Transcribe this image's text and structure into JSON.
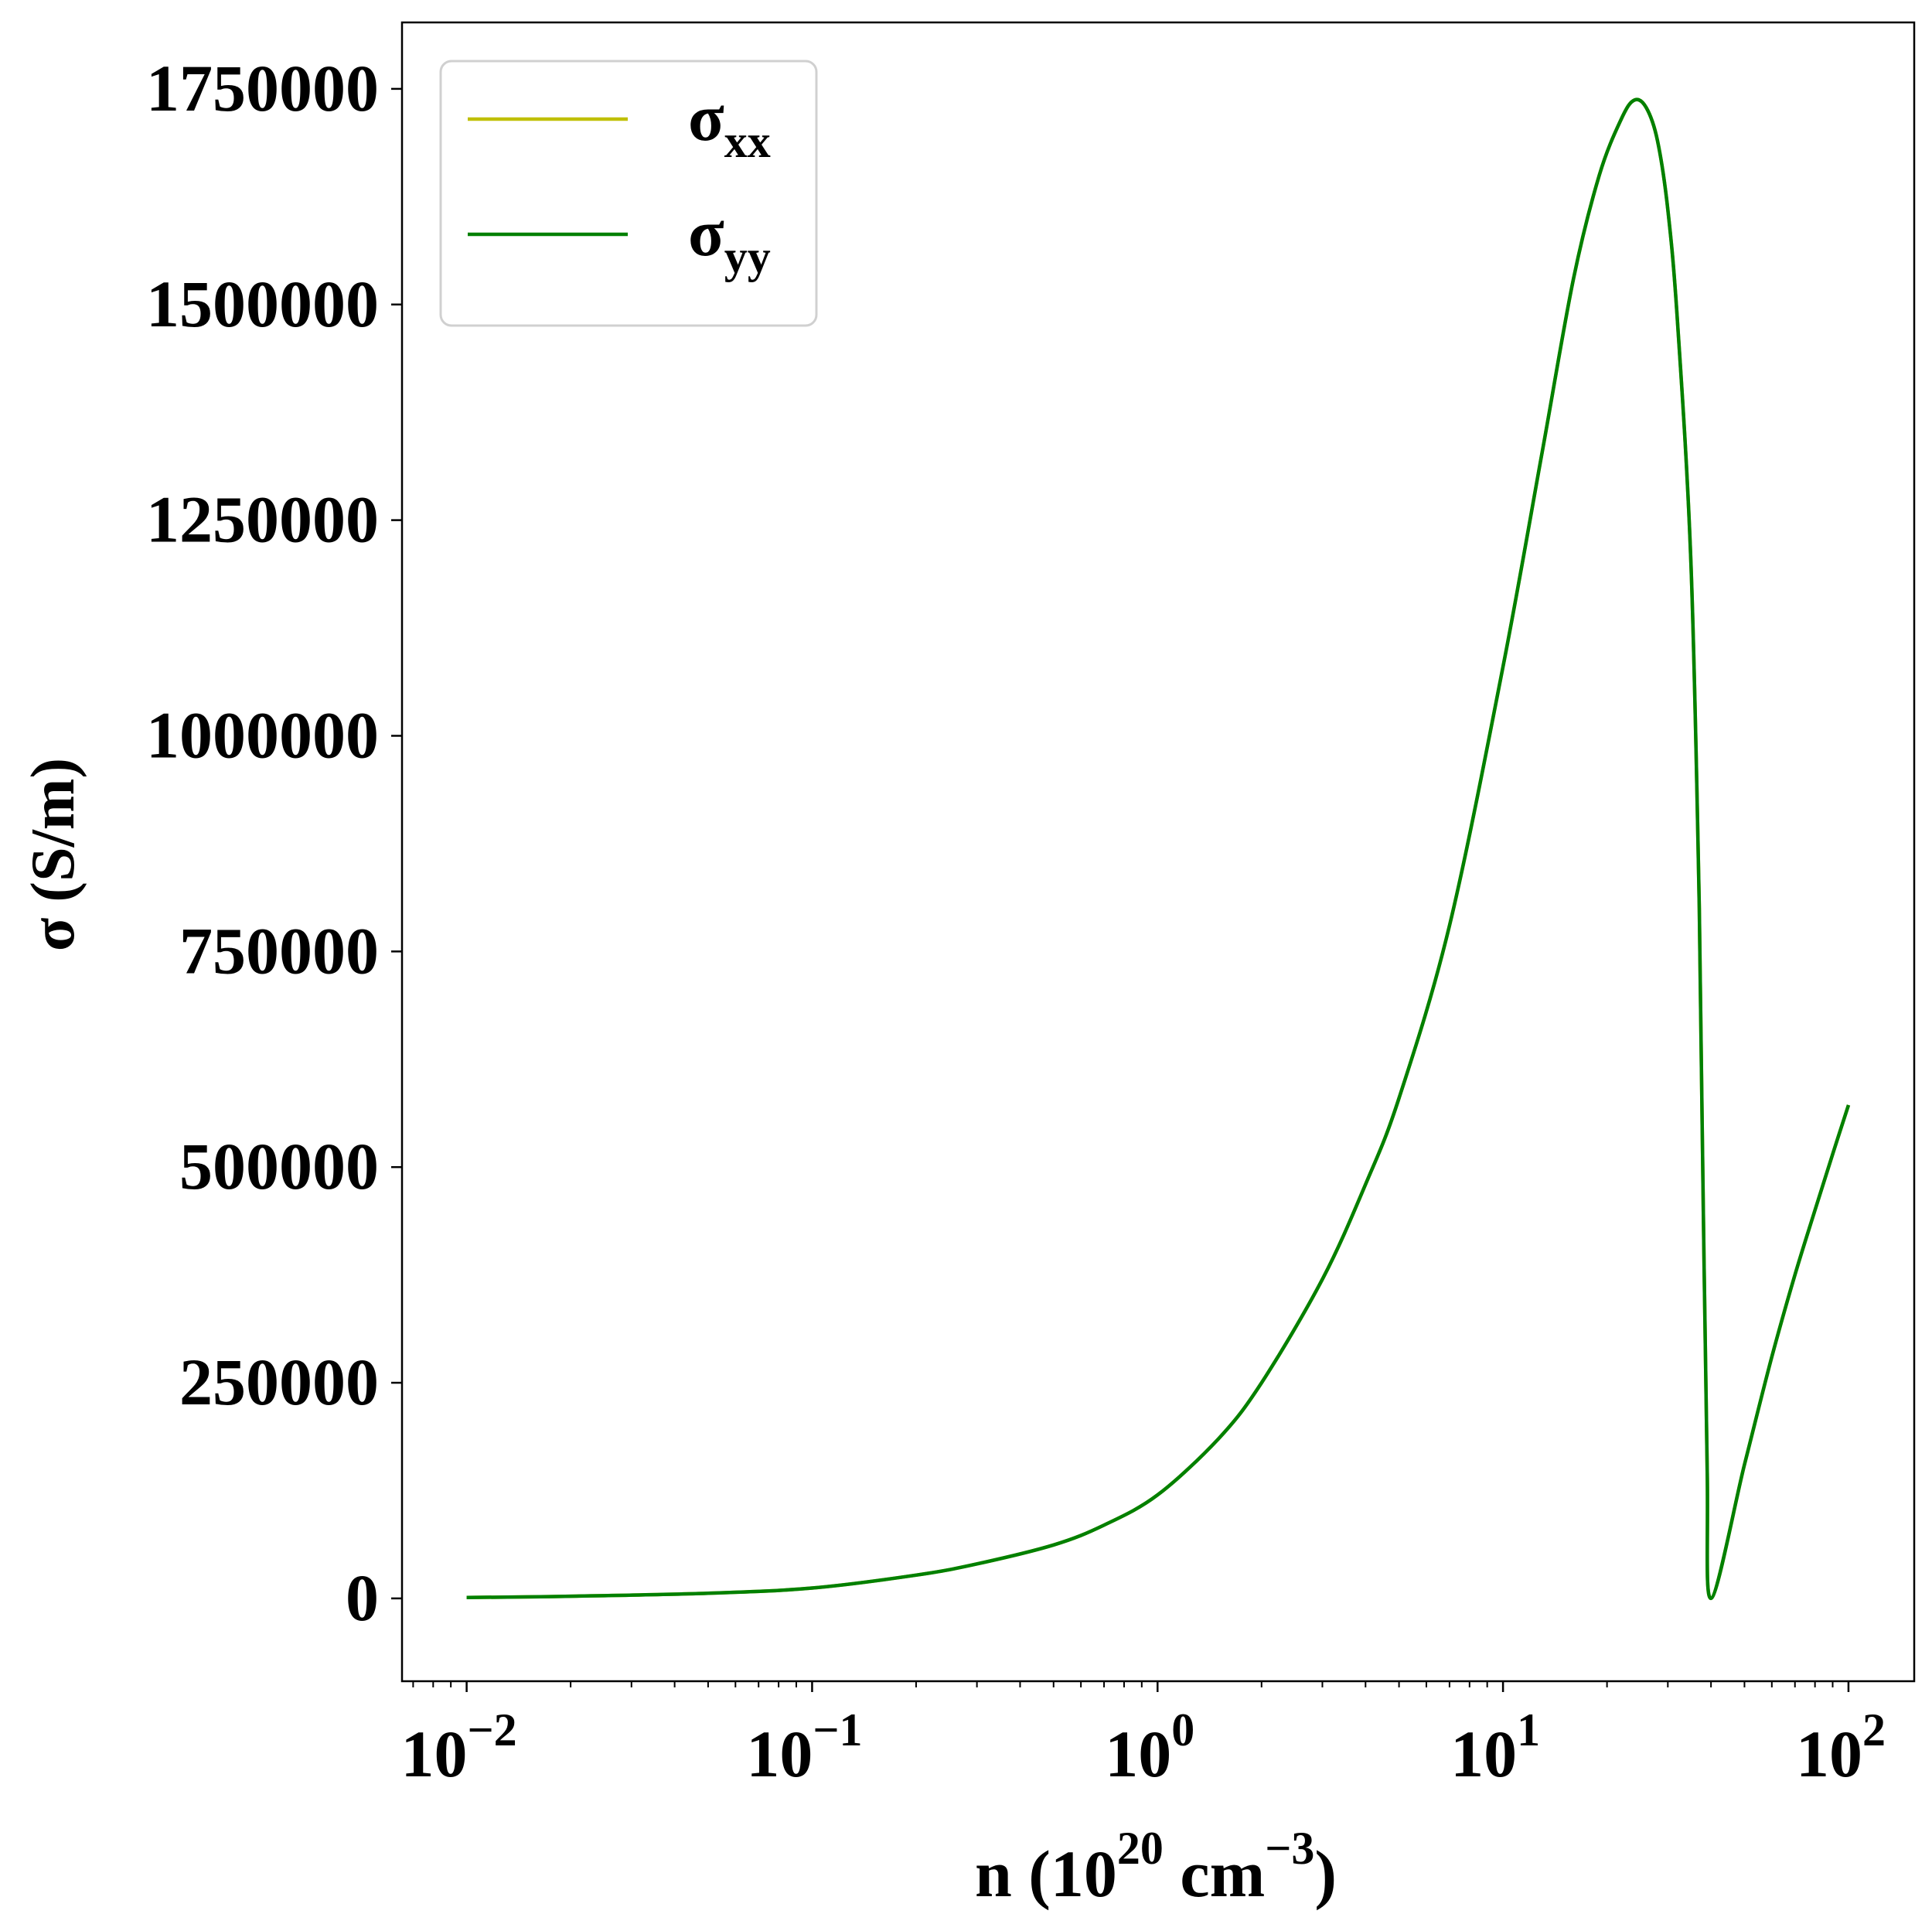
{
  "chart_data": {
    "type": "line",
    "xscale": "log",
    "xlim": [
      0.0065,
      155
    ],
    "ylim": [
      -96000,
      1827000
    ],
    "grid": false,
    "legend_position": "top-left",
    "xlabel": {
      "main": "n (10",
      "exp1": "20",
      "mid": " cm",
      "exp2": "−3",
      "end": ")"
    },
    "ylabel": "σ (S/m)",
    "x_ticks": [
      {
        "value": 0.01,
        "base": "10",
        "exp": "−2"
      },
      {
        "value": 0.1,
        "base": "10",
        "exp": "−1"
      },
      {
        "value": 1,
        "base": "10",
        "exp": "0"
      },
      {
        "value": 10,
        "base": "10",
        "exp": "1"
      },
      {
        "value": 100,
        "base": "10",
        "exp": "2"
      }
    ],
    "y_ticks": [
      {
        "value": 0,
        "label": "0"
      },
      {
        "value": 250000,
        "label": "250000"
      },
      {
        "value": 500000,
        "label": "500000"
      },
      {
        "value": 750000,
        "label": "750000"
      },
      {
        "value": 1000000,
        "label": "1000000"
      },
      {
        "value": 1250000,
        "label": "1250000"
      },
      {
        "value": 1500000,
        "label": "1500000"
      },
      {
        "value": 1750000,
        "label": "1750000"
      }
    ],
    "series": [
      {
        "name": "σ",
        "subscript": "xx",
        "color": "#bfbf00",
        "x": [
          0.01,
          0.02,
          0.05,
          0.1,
          0.2,
          0.3,
          0.5,
          0.7,
          1,
          1.5,
          2,
          3,
          4,
          5,
          7,
          10,
          13,
          16,
          19,
          22,
          24,
          26,
          28,
          30,
          32,
          35,
          37,
          38,
          39,
          40,
          50,
          60,
          70,
          80,
          90,
          100
        ],
        "y": [
          1000,
          2500,
          6000,
          12000,
          27000,
          40000,
          62000,
          85000,
          120000,
          185000,
          250000,
          370000,
          480000,
          580000,
          780000,
          1080000,
          1330000,
          1530000,
          1650000,
          1715000,
          1737000,
          1728000,
          1690000,
          1610000,
          1480000,
          1200000,
          800000,
          450000,
          150000,
          0,
          155000,
          280000,
          375000,
          450000,
          515000,
          572000
        ]
      },
      {
        "name": "σ",
        "subscript": "yy",
        "color": "#008000",
        "x": [
          0.01,
          0.02,
          0.05,
          0.1,
          0.2,
          0.3,
          0.5,
          0.7,
          1,
          1.5,
          2,
          3,
          4,
          5,
          7,
          10,
          13,
          16,
          19,
          22,
          24,
          26,
          28,
          30,
          32,
          35,
          37,
          38,
          39,
          40,
          50,
          60,
          70,
          80,
          90,
          100
        ],
        "y": [
          1000,
          2500,
          6000,
          12000,
          27000,
          40000,
          62000,
          85000,
          120000,
          185000,
          250000,
          370000,
          480000,
          580000,
          780000,
          1080000,
          1330000,
          1530000,
          1650000,
          1715000,
          1737000,
          1728000,
          1690000,
          1610000,
          1480000,
          1200000,
          800000,
          450000,
          150000,
          0,
          155000,
          280000,
          375000,
          450000,
          515000,
          572000
        ]
      }
    ]
  }
}
